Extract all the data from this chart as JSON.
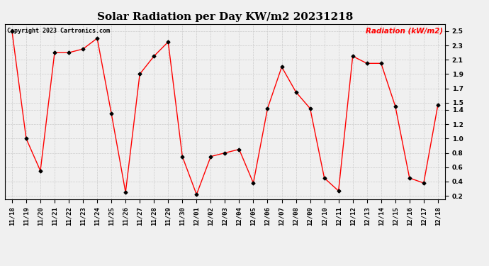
{
  "title": "Solar Radiation per Day KW/m2 20231218",
  "legend_label": "Radiation (kW/m2)",
  "copyright": "Copyright 2023 Cartronics.com",
  "dates": [
    "11/18",
    "11/19",
    "11/20",
    "11/21",
    "11/22",
    "11/23",
    "11/24",
    "11/25",
    "11/26",
    "11/27",
    "11/28",
    "11/29",
    "11/30",
    "12/01",
    "12/02",
    "12/03",
    "12/04",
    "12/05",
    "12/06",
    "12/07",
    "12/08",
    "12/09",
    "12/10",
    "12/11",
    "12/12",
    "12/13",
    "12/14",
    "12/15",
    "12/16",
    "12/17",
    "12/18"
  ],
  "values": [
    2.5,
    1.0,
    0.55,
    2.2,
    2.2,
    2.25,
    2.4,
    1.35,
    0.25,
    1.9,
    2.15,
    2.35,
    0.75,
    0.22,
    0.75,
    0.8,
    0.85,
    0.38,
    1.42,
    2.0,
    1.65,
    1.42,
    0.45,
    0.27,
    2.15,
    2.05,
    2.05,
    1.45,
    0.45,
    0.38,
    1.47
  ],
  "line_color": "red",
  "marker_color": "black",
  "marker_style": "D",
  "marker_size": 2.5,
  "line_width": 1.0,
  "ylim": [
    0.15,
    2.6
  ],
  "yticks": [
    0.2,
    0.4,
    0.6,
    0.8,
    1.0,
    1.2,
    1.4,
    1.5,
    1.7,
    1.9,
    2.1,
    2.3,
    2.5
  ],
  "grid_color": "#cccccc",
  "bg_color": "#f0f0f0",
  "title_fontsize": 11,
  "copyright_fontsize": 6,
  "legend_fontsize": 7.5,
  "tick_fontsize": 6.5
}
